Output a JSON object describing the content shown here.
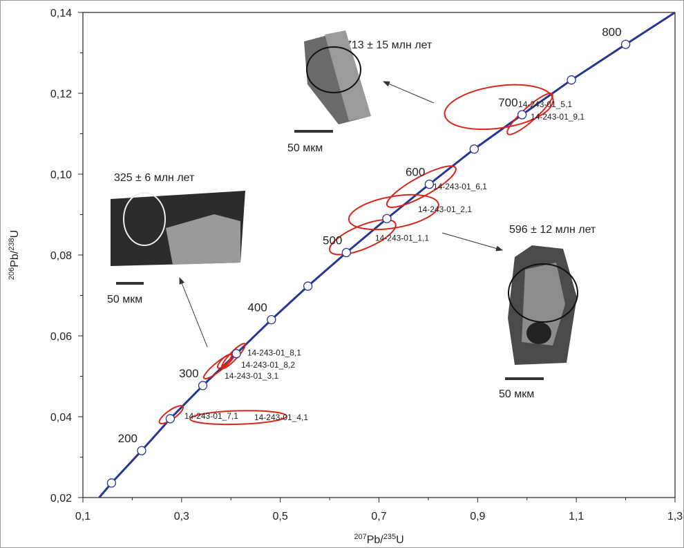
{
  "chart_data": {
    "type": "concordia",
    "x_label": [
      "207",
      "Pb/",
      "235",
      "U"
    ],
    "y_label": [
      "206",
      "Pb/",
      "238",
      "U"
    ],
    "xlim": [
      0.1,
      1.3
    ],
    "ylim": [
      0.02,
      0.14
    ],
    "xticks": [
      {
        "value": 0.1,
        "label": "0,1"
      },
      {
        "value": 0.3,
        "label": "0,3"
      },
      {
        "value": 0.5,
        "label": "0,5"
      },
      {
        "value": 0.7,
        "label": "0,7"
      },
      {
        "value": 0.9,
        "label": "0,9"
      },
      {
        "value": 1.1,
        "label": "1,1"
      },
      {
        "value": 1.3,
        "label": "1,3"
      }
    ],
    "yticks": [
      {
        "value": 0.02,
        "label": "0,02"
      },
      {
        "value": 0.04,
        "label": "0,04"
      },
      {
        "value": 0.06,
        "label": "0,06"
      },
      {
        "value": 0.08,
        "label": "0,08"
      },
      {
        "value": 0.1,
        "label": "0,10"
      },
      {
        "value": 0.12,
        "label": "0,12"
      },
      {
        "value": 0.14,
        "label": "0,14"
      }
    ],
    "xminorticks": [
      0.2,
      0.4,
      0.6,
      0.8,
      1.0,
      1.2
    ],
    "yminorticks": [
      0.03,
      0.05,
      0.07,
      0.09,
      0.11,
      0.13
    ],
    "curve": {
      "color": "#283593",
      "x": [
        0.133,
        0.158,
        0.219,
        0.277,
        0.343,
        0.411,
        0.482,
        0.556,
        0.634,
        0.716,
        0.802,
        0.893,
        0.99,
        1.09,
        1.2,
        1.3
      ],
      "values": [
        0.02,
        0.0236,
        0.0316,
        0.0395,
        0.0477,
        0.0556,
        0.064,
        0.0723,
        0.0806,
        0.089,
        0.0975,
        0.1062,
        0.1147,
        0.1233,
        0.1321,
        0.14
      ]
    },
    "points": {
      "x": [
        0.158,
        0.219,
        0.277,
        0.343,
        0.411,
        0.482,
        0.556,
        0.634,
        0.716,
        0.802,
        0.893,
        0.99,
        1.09,
        1.2
      ],
      "values": [
        0.0236,
        0.0316,
        0.0395,
        0.0477,
        0.0556,
        0.064,
        0.0723,
        0.0806,
        0.089,
        0.0975,
        0.1062,
        0.1147,
        0.1233,
        0.1321
      ],
      "labels": [
        null,
        "200",
        null,
        "300",
        null,
        "400",
        null,
        "500",
        null,
        "600",
        null,
        "700",
        null,
        "800"
      ]
    },
    "ellipse_color": "#d9261c",
    "ellipses": [
      {
        "name": "14-243-01_5,1",
        "x": 0.943,
        "y": 0.1166,
        "x_err": 0.11,
        "y_err": 0.0055,
        "rho": 0.3
      },
      {
        "name": "14-243-01_9,1",
        "x": 1.006,
        "y": 0.1149,
        "x_err": 0.046,
        "y_err": 0.0051,
        "rho": 0.9
      },
      {
        "name": "14-243-01_6,1",
        "x": 0.786,
        "y": 0.0969,
        "x_err": 0.07,
        "y_err": 0.0051,
        "rho": 0.85
      },
      {
        "name": "14-243-01_2,1",
        "x": 0.73,
        "y": 0.0906,
        "x_err": 0.091,
        "y_err": 0.0043,
        "rho": 0.4
      },
      {
        "name": "14-243-01_1,1",
        "x": 0.667,
        "y": 0.0844,
        "x_err": 0.067,
        "y_err": 0.0043,
        "rho": 0.7
      },
      {
        "name": "14-243-01_8,1",
        "x": 0.405,
        "y": 0.055,
        "x_err": 0.024,
        "y_err": 0.0031,
        "rho": 0.9
      },
      {
        "name": "14-243-01_8,2",
        "x": 0.387,
        "y": 0.0537,
        "x_err": 0.014,
        "y_err": 0.0017,
        "rho": 0.8
      },
      {
        "name": "14-243-01_3,1",
        "x": 0.376,
        "y": 0.0525,
        "x_err": 0.031,
        "y_err": 0.0031,
        "rho": 0.9
      },
      {
        "name": "14-243-01_7,1",
        "x": 0.279,
        "y": 0.0405,
        "x_err": 0.024,
        "y_err": 0.0022,
        "rho": 0.8
      },
      {
        "name": "14-243-01_4,1",
        "x": 0.415,
        "y": 0.0398,
        "x_err": 0.098,
        "y_err": 0.0017,
        "rho": 0.2
      }
    ],
    "insets": [
      {
        "age": "713 ± 15 млн лет",
        "scale": "50 мкм"
      },
      {
        "age": "325 ± 6 млн лет",
        "scale": "50 мкм"
      },
      {
        "age": "596 ± 12 млн лет",
        "scale": "50 мкм"
      }
    ]
  }
}
